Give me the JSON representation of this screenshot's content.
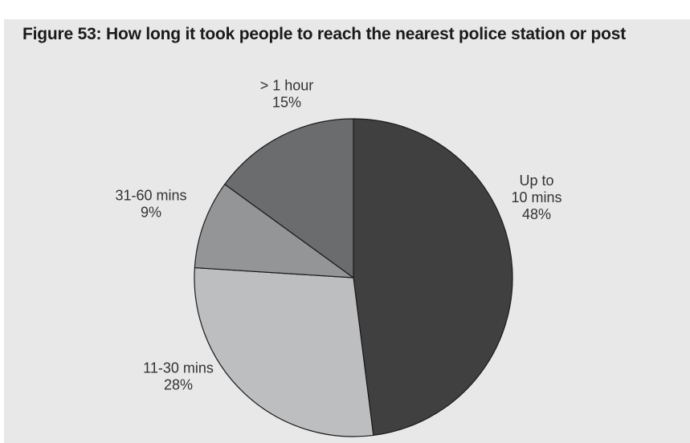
{
  "chart_data": {
    "type": "pie",
    "title": "Figure 53: How long it took people to reach the nearest police station or post",
    "slices": [
      {
        "label": "Up to 10 mins",
        "label_lines": [
          "Up to",
          "10 mins"
        ],
        "value": 48,
        "value_label": "48%",
        "color": "#404040"
      },
      {
        "label": "11-30 mins",
        "label_lines": [
          "11-30 mins"
        ],
        "value": 28,
        "value_label": "28%",
        "color": "#bdbec0"
      },
      {
        "label": "31-60 mins",
        "label_lines": [
          "31-60 mins"
        ],
        "value": 9,
        "value_label": "9%",
        "color": "#949597"
      },
      {
        "label": "> 1 hour",
        "label_lines": [
          "> 1 hour"
        ],
        "value": 15,
        "value_label": "15%",
        "color": "#6b6c6e"
      }
    ],
    "start": "12 o'clock",
    "direction": "clockwise",
    "legend": "none",
    "data_labels": "outside"
  },
  "colors": {
    "panel_background": "#e8e8e8",
    "slice_border": "#1a1a1a"
  }
}
